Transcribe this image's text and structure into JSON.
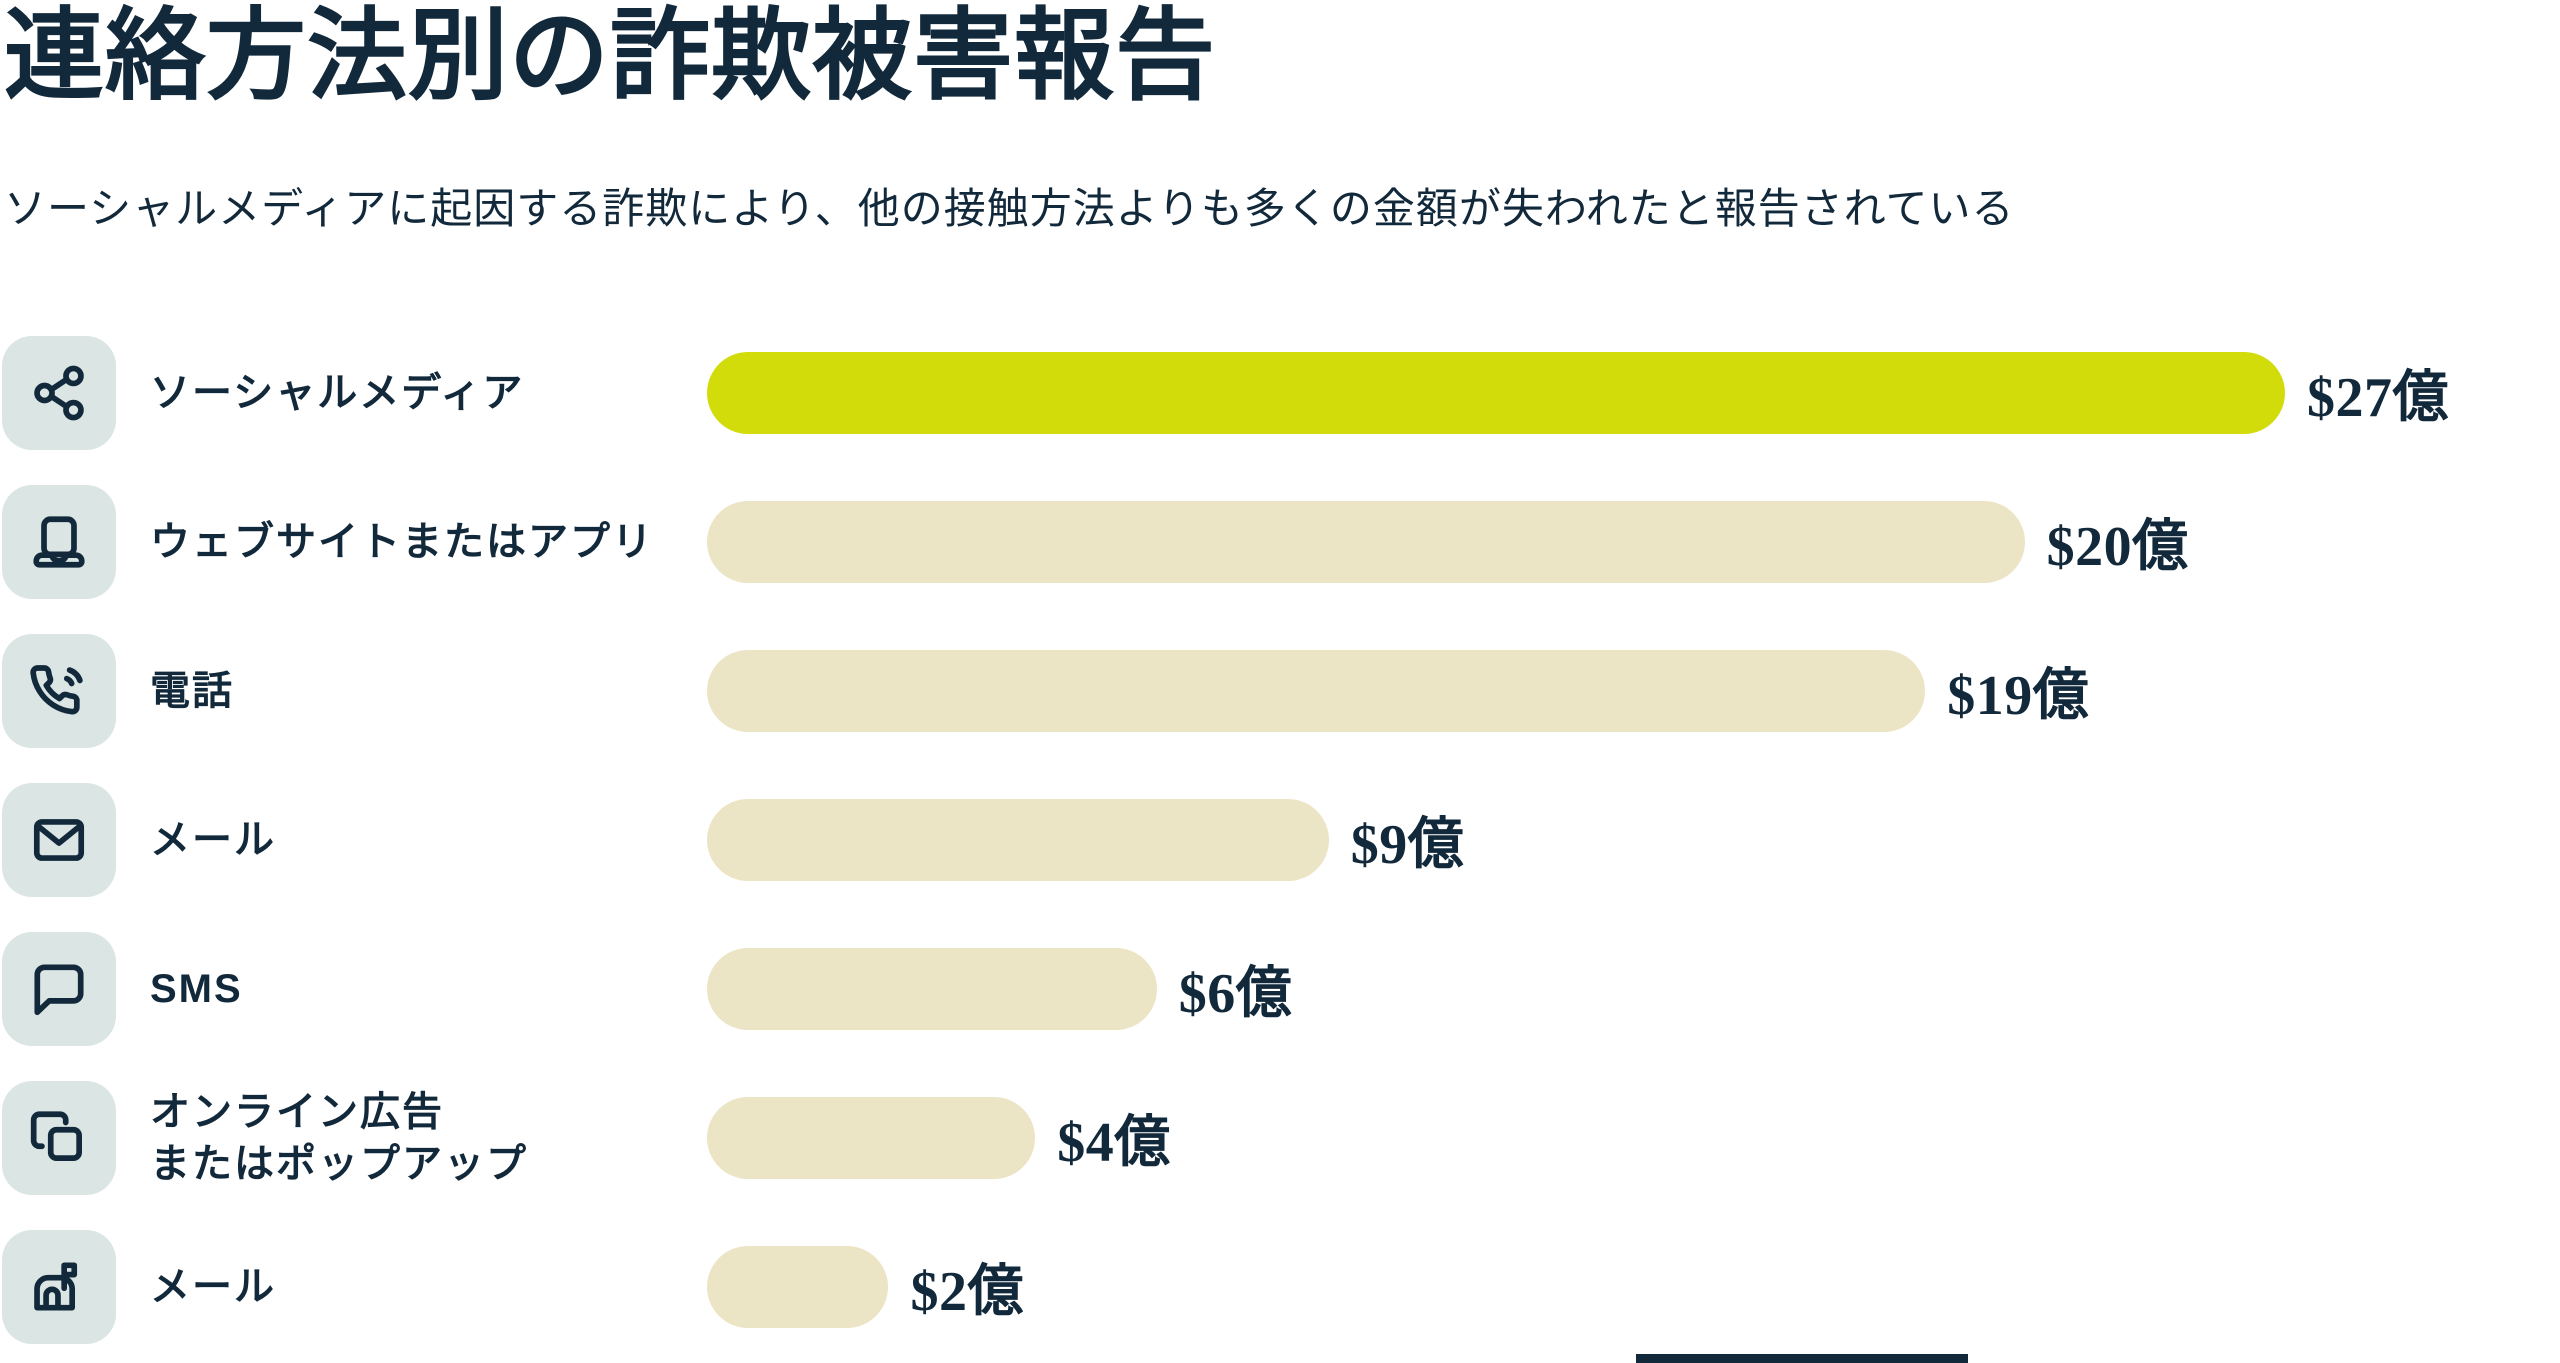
{
  "page": {
    "title": "連絡方法別の詐欺被害報告",
    "subtitle": "ソーシャルメディアに起因する詐欺により、他の接触方法よりも多くの金額が失われたと報告されている"
  },
  "colors": {
    "text_navy": "#12293b",
    "icon_tile_bg": "#dbe5e4",
    "bar_highlight": "#d2dc0b",
    "bar_default": "#ebe4c5"
  },
  "chart_data": {
    "type": "bar",
    "orientation": "horizontal",
    "title": "連絡方法別の詐欺被害報告",
    "subtitle": "ソーシャルメディアに起因する詐欺により、他の接触方法よりも多くの金額が失われたと報告されている",
    "unit": "億 (USD, $100M)",
    "xlim": [
      0,
      27
    ],
    "grid": false,
    "legend": false,
    "highlight_index": 0,
    "categories": [
      "ソーシャルメディア",
      "ウェブサイトまたはアプリ",
      "電話",
      "メール",
      "SMS",
      "オンライン広告またはポップアップ",
      "メール"
    ],
    "values": [
      27,
      20,
      19,
      9,
      6,
      4,
      2
    ],
    "value_labels": [
      "$27億",
      "$20億",
      "$19億",
      "$9億",
      "$6億",
      "$4億",
      "$2億"
    ],
    "rows": [
      {
        "icon": "share-nodes-icon",
        "label": "ソーシャルメディア",
        "value": 27,
        "value_label": "$27億",
        "width_pct": 100,
        "highlight": true
      },
      {
        "icon": "laptop-icon",
        "label": "ウェブサイトまたはアプリ",
        "value": 20,
        "value_label": "$20億",
        "width_pct": 83.5,
        "highlight": false
      },
      {
        "icon": "phone-call-icon",
        "label": "電話",
        "value": 19,
        "value_label": "$19億",
        "width_pct": 77.2,
        "highlight": false
      },
      {
        "icon": "envelope-icon",
        "label": "メール",
        "value": 9,
        "value_label": "$9億",
        "width_pct": 39.4,
        "highlight": false
      },
      {
        "icon": "chat-bubble-icon",
        "label": "SMS",
        "value": 6,
        "value_label": "$6億",
        "width_pct": 28.5,
        "highlight": false
      },
      {
        "icon": "popup-windows-icon",
        "label": "オンライン広告\nまたはポップアップ",
        "value": 4,
        "value_label": "$4億",
        "width_pct": 20.8,
        "highlight": false
      },
      {
        "icon": "mailbox-icon",
        "label": "メール",
        "value": 2,
        "value_label": "$2億",
        "width_pct": 11.5,
        "highlight": false
      }
    ]
  }
}
